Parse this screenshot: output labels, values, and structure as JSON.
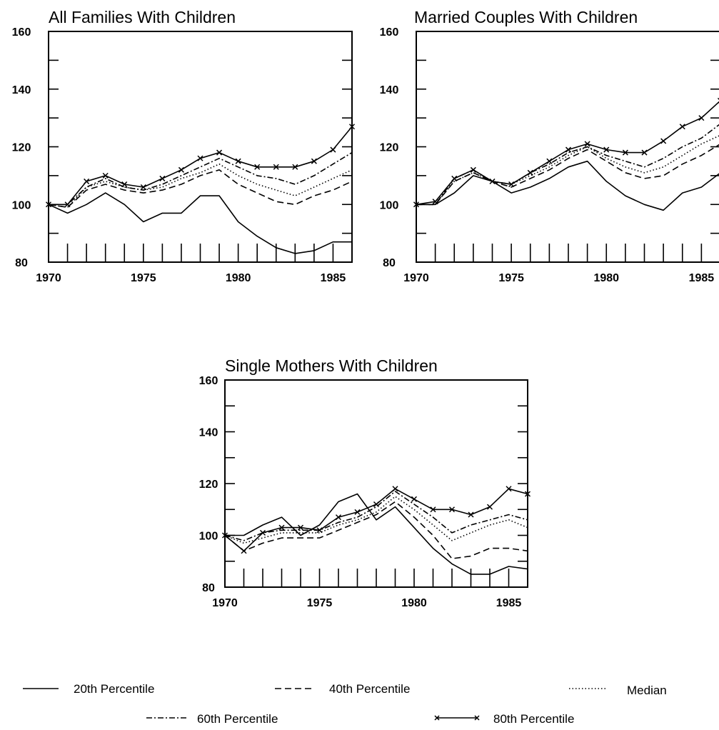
{
  "chart_data": [
    {
      "type": "line",
      "title": "All Families With Children",
      "x": [
        1970,
        1971,
        1972,
        1973,
        1974,
        1975,
        1976,
        1977,
        1978,
        1979,
        1980,
        1981,
        1982,
        1983,
        1984,
        1985,
        1986
      ],
      "xticks": [
        "1970",
        "1975",
        "1980",
        "1985"
      ],
      "yticks": [
        "80",
        "100",
        "120",
        "140",
        "160"
      ],
      "xlim": [
        1970,
        1986
      ],
      "ylim": [
        80,
        160
      ],
      "series": [
        {
          "name": "20th Percentile",
          "values": [
            100,
            97,
            100,
            104,
            100,
            94,
            97,
            97,
            103,
            103,
            94,
            89,
            85,
            83,
            84,
            87,
            87
          ]
        },
        {
          "name": "40th Percentile",
          "values": [
            100,
            99,
            105,
            107,
            105,
            104,
            105,
            107,
            110,
            112,
            107,
            104,
            101,
            100,
            103,
            105,
            108
          ]
        },
        {
          "name": "Median",
          "values": [
            100,
            99,
            106,
            108,
            106,
            105,
            106,
            109,
            111,
            114,
            110,
            107,
            105,
            103,
            106,
            109,
            112
          ]
        },
        {
          "name": "60th Percentile",
          "values": [
            100,
            100,
            106,
            109,
            106,
            105,
            107,
            110,
            113,
            116,
            113,
            110,
            109,
            107,
            110,
            114,
            118
          ]
        },
        {
          "name": "80th Percentile",
          "values": [
            100,
            100,
            108,
            110,
            107,
            106,
            109,
            112,
            116,
            118,
            115,
            113,
            113,
            113,
            115,
            119,
            127
          ]
        }
      ]
    },
    {
      "type": "line",
      "title": "Married Couples With Children",
      "x": [
        1970,
        1971,
        1972,
        1973,
        1974,
        1975,
        1976,
        1977,
        1978,
        1979,
        1980,
        1981,
        1982,
        1983,
        1984,
        1985,
        1986
      ],
      "xticks": [
        "1970",
        "1975",
        "1980",
        "1985"
      ],
      "yticks": [
        "80",
        "100",
        "120",
        "140",
        "160"
      ],
      "xlim": [
        1970,
        1986
      ],
      "ylim": [
        80,
        160
      ],
      "series": [
        {
          "name": "20th Percentile",
          "values": [
            100,
            100,
            104,
            110,
            108,
            104,
            106,
            109,
            113,
            115,
            108,
            103,
            100,
            98,
            104,
            106,
            111
          ]
        },
        {
          "name": "40th Percentile",
          "values": [
            100,
            100,
            108,
            111,
            108,
            106,
            109,
            112,
            116,
            119,
            115,
            111,
            109,
            110,
            114,
            117,
            121
          ]
        },
        {
          "name": "Median",
          "values": [
            100,
            100,
            108,
            111,
            108,
            107,
            110,
            113,
            117,
            120,
            116,
            113,
            111,
            113,
            117,
            121,
            124
          ]
        },
        {
          "name": "60th Percentile",
          "values": [
            100,
            100,
            109,
            112,
            108,
            107,
            111,
            114,
            118,
            120,
            117,
            115,
            113,
            116,
            120,
            123,
            128
          ]
        },
        {
          "name": "80th Percentile",
          "values": [
            100,
            101,
            109,
            112,
            108,
            107,
            111,
            115,
            119,
            121,
            119,
            118,
            118,
            122,
            127,
            130,
            136
          ]
        }
      ]
    },
    {
      "type": "line",
      "title": "Single Mothers With Children",
      "x": [
        1970,
        1971,
        1972,
        1973,
        1974,
        1975,
        1976,
        1977,
        1978,
        1979,
        1980,
        1981,
        1982,
        1983,
        1984,
        1985,
        1986
      ],
      "xticks": [
        "1970",
        "1975",
        "1980",
        "1985"
      ],
      "yticks": [
        "80",
        "100",
        "120",
        "140",
        "160"
      ],
      "xlim": [
        1970,
        1986
      ],
      "ylim": [
        80,
        160
      ],
      "series": [
        {
          "name": "20th Percentile",
          "values": [
            100,
            100,
            104,
            107,
            100,
            104,
            113,
            116,
            106,
            111,
            103,
            95,
            89,
            85,
            85,
            88,
            87
          ]
        },
        {
          "name": "40th Percentile",
          "values": [
            100,
            94,
            97,
            99,
            99,
            99,
            102,
            105,
            108,
            113,
            107,
            100,
            91,
            92,
            95,
            95,
            94
          ]
        },
        {
          "name": "Median",
          "values": [
            100,
            97,
            99,
            101,
            101,
            101,
            104,
            106,
            109,
            115,
            110,
            104,
            98,
            101,
            104,
            106,
            103
          ]
        },
        {
          "name": "60th Percentile",
          "values": [
            100,
            98,
            101,
            102,
            102,
            102,
            105,
            107,
            111,
            117,
            112,
            107,
            101,
            104,
            106,
            108,
            106
          ]
        },
        {
          "name": "80th Percentile",
          "values": [
            100,
            94,
            101,
            103,
            103,
            102,
            107,
            109,
            112,
            118,
            114,
            110,
            110,
            108,
            111,
            118,
            116
          ]
        }
      ]
    }
  ],
  "legend": [
    {
      "label": "20th Percentile",
      "style": "solid"
    },
    {
      "label": "40th Percentile",
      "style": "dashed"
    },
    {
      "label": "Median",
      "style": "dotted"
    },
    {
      "label": "60th Percentile",
      "style": "dash-dot"
    },
    {
      "label": "80th Percentile",
      "style": "solid-x-marker"
    }
  ],
  "colors": {
    "ink": "#000000",
    "background": "#ffffff"
  }
}
